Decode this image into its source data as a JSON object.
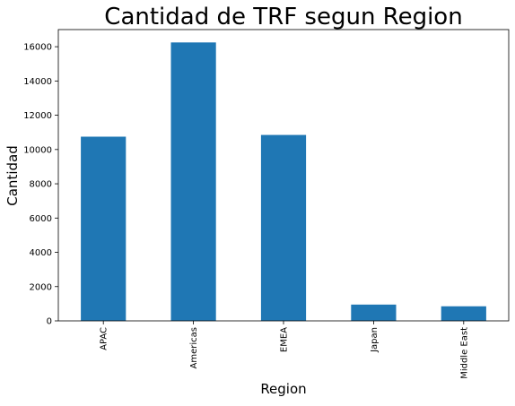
{
  "chart_data": {
    "type": "bar",
    "title": "Cantidad de TRF segun Region",
    "xlabel": "Region",
    "ylabel": "Cantidad",
    "categories": [
      "APAC",
      "Americas",
      "EMEA",
      "Japan",
      "Middle East"
    ],
    "values": [
      10750,
      16250,
      10850,
      950,
      850
    ],
    "ylim": [
      0,
      17000
    ],
    "yticks": [
      0,
      2000,
      4000,
      6000,
      8000,
      10000,
      12000,
      14000,
      16000
    ],
    "ytick_labels": [
      "0",
      "2000",
      "4000",
      "6000",
      "8000",
      "10000",
      "12000",
      "14000",
      "16000"
    ],
    "grid": false,
    "legend": "none",
    "colors": {
      "bar": "#1f77b4",
      "axis": "#000000",
      "text": "#000000",
      "background": "#ffffff"
    }
  }
}
